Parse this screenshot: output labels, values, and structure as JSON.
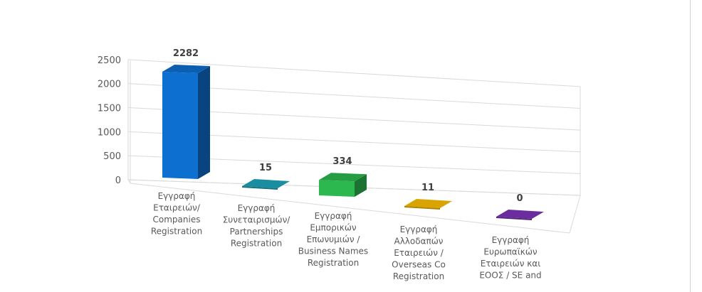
{
  "chart_data": {
    "type": "bar",
    "three_d": true,
    "title": "",
    "xlabel": "",
    "ylabel": "",
    "ylim": [
      0,
      2500
    ],
    "yticks": [
      0,
      500,
      1000,
      1500,
      2000,
      2500
    ],
    "grid": true,
    "legend": "none",
    "categories": [
      [
        "Εγγραφή",
        "Εταιρειών/",
        "Companies",
        "Registration"
      ],
      [
        "Εγγραφή",
        "Συνεταιρισμών/",
        "Partnerships",
        "Registration"
      ],
      [
        "Εγγραφή",
        "Εμπορικών",
        "Επωνυμιών /",
        "Business Names",
        "Registration"
      ],
      [
        "Εγγραφή",
        "Αλλοδαπών",
        "Εταιρειών /",
        "Overseas Co",
        "Registration"
      ],
      [
        "Εγγραφή",
        "Ευρωπαϊκών",
        "Εταιρειών και",
        "ΕΟΟΣ / SE and"
      ]
    ],
    "values": [
      2282,
      15,
      334,
      11,
      0
    ],
    "colors": [
      "#0d6fcf",
      "#1a8da0",
      "#2db84f",
      "#d9a400",
      "#6b2d9e"
    ]
  }
}
